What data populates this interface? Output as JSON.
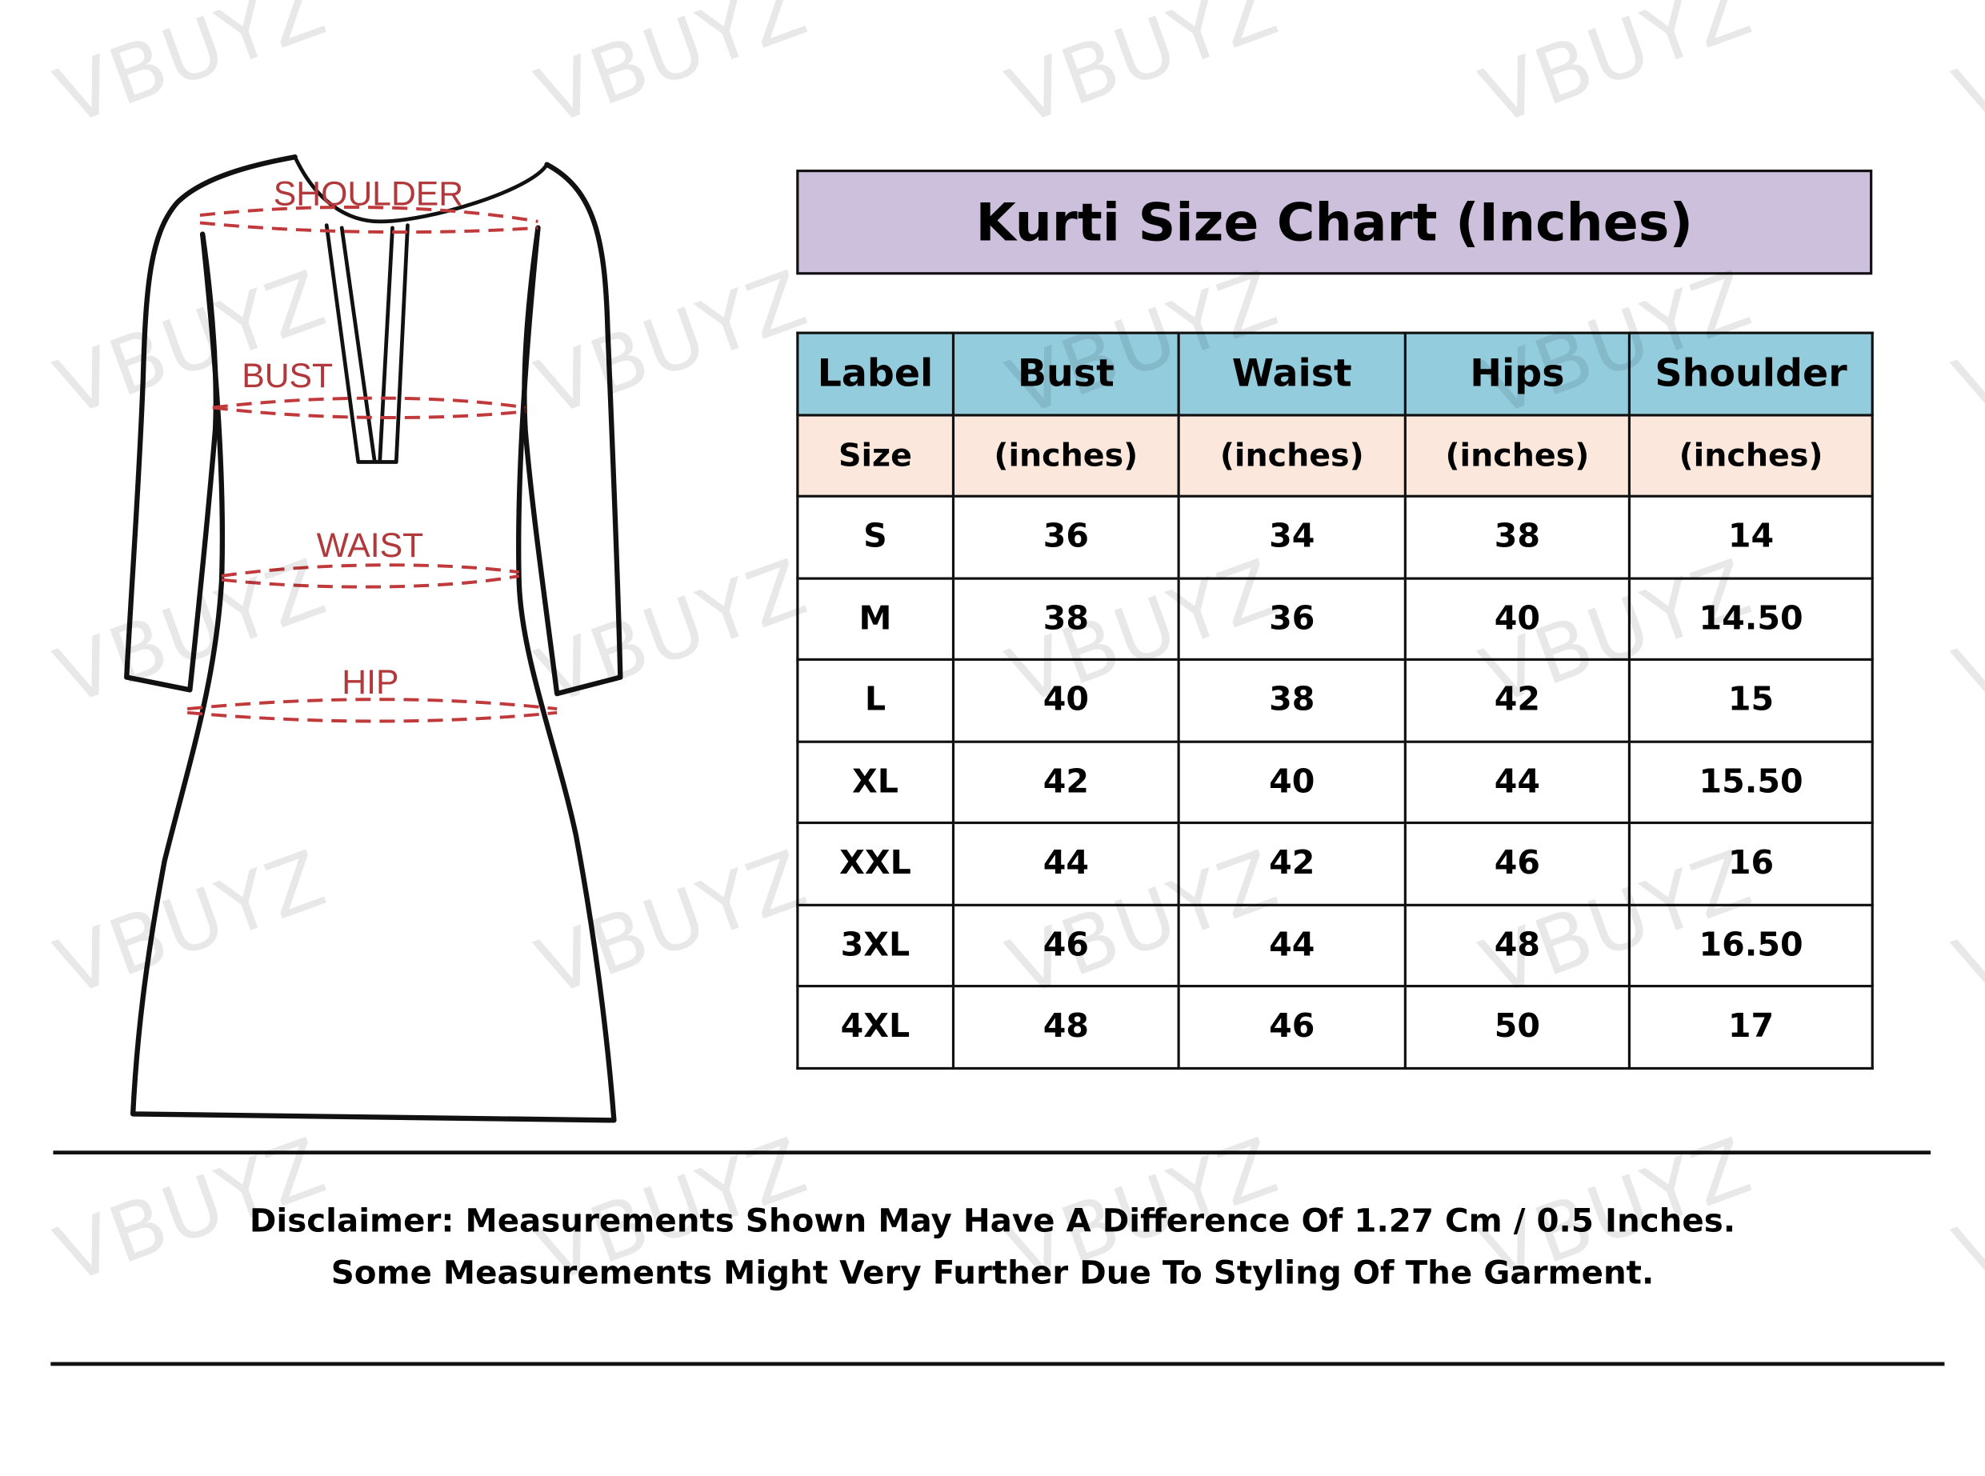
{
  "watermark": "VBUYZ",
  "diagram": {
    "labels": [
      "SHOULDER",
      "BUST",
      "WAIST",
      "HIP"
    ],
    "measure_line_color": "#c0393b"
  },
  "title": "Kurti Size Chart (Inches)",
  "colors": {
    "title_bg": "#cdc0dc",
    "header_bg": "#92ccdd",
    "subheader_bg": "#fbe7db"
  },
  "table": {
    "headers": [
      "Label",
      "Bust",
      "Waist",
      "Hips",
      "Shoulder"
    ],
    "subheaders": [
      "Size",
      "(inches)",
      "(inches)",
      "(inches)",
      "(inches)"
    ],
    "rows": [
      [
        "S",
        "36",
        "34",
        "38",
        "14"
      ],
      [
        "M",
        "38",
        "36",
        "40",
        "14.50"
      ],
      [
        "L",
        "40",
        "38",
        "42",
        "15"
      ],
      [
        "XL",
        "42",
        "40",
        "44",
        "15.50"
      ],
      [
        "XXL",
        "44",
        "42",
        "46",
        "16"
      ],
      [
        "3XL",
        "46",
        "44",
        "48",
        "16.50"
      ],
      [
        "4XL",
        "48",
        "46",
        "50",
        "17"
      ]
    ]
  },
  "disclaimer": {
    "line1": "Disclaimer: Measurements Shown May Have A Difference Of 1.27 Cm / 0.5 Inches.",
    "line2": "Some Measurements Might Very Further Due To Styling Of The Garment."
  }
}
